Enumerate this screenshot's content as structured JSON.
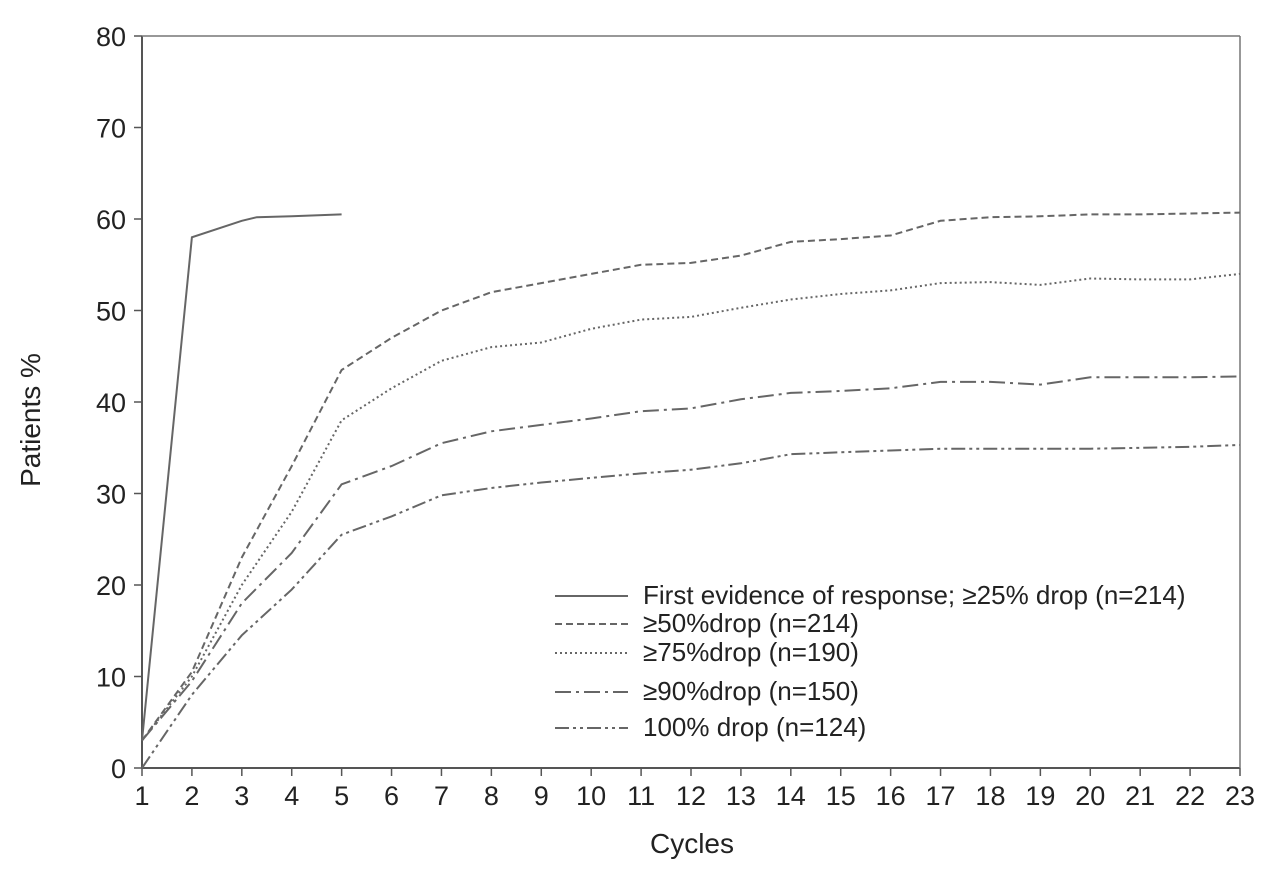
{
  "chart_data": {
    "type": "line",
    "xlabel": "Cycles",
    "ylabel": "Patients %",
    "xlim": [
      1,
      23
    ],
    "ylim": [
      0,
      80
    ],
    "x_ticks": [
      1,
      2,
      3,
      4,
      5,
      6,
      7,
      8,
      9,
      10,
      11,
      12,
      13,
      14,
      15,
      16,
      17,
      18,
      19,
      20,
      21,
      22,
      23
    ],
    "y_ticks": [
      0,
      10,
      20,
      30,
      40,
      50,
      60,
      70,
      80
    ],
    "grid": false,
    "legend_position": "bottom-right",
    "line_color": "#666666",
    "series": [
      {
        "name": "First evidence of response; ≥25% drop (n=214)",
        "style": "solid",
        "x": [
          1,
          2,
          3,
          3.3,
          4,
          5
        ],
        "y": [
          3,
          58,
          59.8,
          60.2,
          60.3,
          60.5
        ]
      },
      {
        "name": "≥50%drop (n=214)",
        "style": "dashed",
        "x": [
          1,
          2,
          3,
          4,
          5,
          6,
          7,
          8,
          9,
          10,
          11,
          12,
          13,
          14,
          15,
          16,
          17,
          18,
          19,
          20,
          21,
          22,
          23
        ],
        "y": [
          3,
          10.5,
          23,
          33,
          43.5,
          47,
          50,
          52,
          53,
          54,
          55,
          55.2,
          56,
          57.5,
          57.8,
          58.2,
          59.8,
          60.2,
          60.3,
          60.5,
          60.5,
          60.6,
          60.7
        ]
      },
      {
        "name": "≥75%drop (n=190)",
        "style": "dotted",
        "x": [
          1,
          2,
          3,
          4,
          5,
          6,
          7,
          8,
          9,
          10,
          11,
          12,
          13,
          14,
          15,
          16,
          17,
          18,
          19,
          20,
          21,
          22,
          23
        ],
        "y": [
          3,
          10,
          20,
          28,
          38,
          41.5,
          44.5,
          46,
          46.5,
          48,
          49,
          49.3,
          50.3,
          51.2,
          51.8,
          52.2,
          53,
          53.1,
          52.8,
          53.5,
          53.4,
          53.4,
          54
        ]
      },
      {
        "name": "≥90%drop (n=150)",
        "style": "long-dash-dot",
        "x": [
          1,
          2,
          3,
          4,
          5,
          6,
          7,
          8,
          9,
          10,
          11,
          12,
          13,
          14,
          15,
          16,
          17,
          18,
          19,
          20,
          21,
          22,
          23
        ],
        "y": [
          3,
          9.5,
          18,
          23.5,
          31,
          33,
          35.5,
          36.8,
          37.5,
          38.2,
          39,
          39.3,
          40.3,
          41,
          41.2,
          41.5,
          42.2,
          42.2,
          41.9,
          42.7,
          42.7,
          42.7,
          42.8
        ]
      },
      {
        "name": "100% drop (n=124)",
        "style": "dash-dot-dot",
        "x": [
          1,
          2,
          3,
          4,
          5,
          6,
          7,
          8,
          9,
          10,
          11,
          12,
          13,
          14,
          15,
          16,
          17,
          18,
          19,
          20,
          21,
          22,
          23
        ],
        "y": [
          0,
          8,
          14.5,
          19.5,
          25.5,
          27.5,
          29.8,
          30.6,
          31.2,
          31.7,
          32.2,
          32.6,
          33.3,
          34.3,
          34.5,
          34.7,
          34.9,
          34.9,
          34.9,
          34.9,
          35,
          35.1,
          35.3
        ]
      }
    ]
  }
}
